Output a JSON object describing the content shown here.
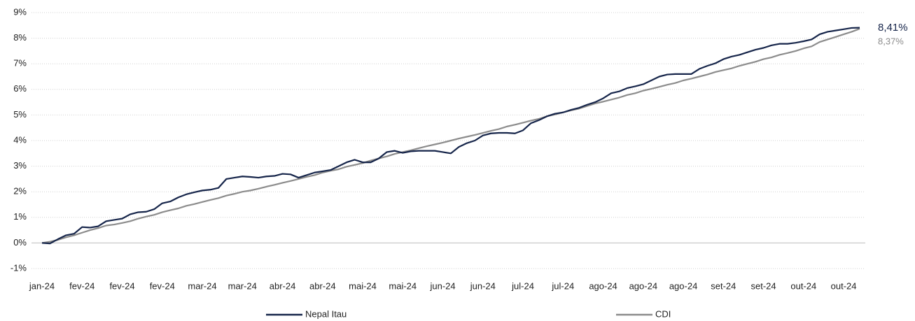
{
  "chart_data": {
    "type": "line",
    "categories": [
      "jan-24",
      null,
      null,
      null,
      null,
      "fev-24",
      null,
      null,
      null,
      null,
      "fev-24",
      null,
      null,
      null,
      null,
      "fev-24",
      null,
      null,
      null,
      null,
      "mar-24",
      null,
      null,
      null,
      null,
      "mar-24",
      null,
      null,
      null,
      null,
      "abr-24",
      null,
      null,
      null,
      null,
      "abr-24",
      null,
      null,
      null,
      null,
      "mai-24",
      null,
      null,
      null,
      null,
      "mai-24",
      null,
      null,
      null,
      null,
      "jun-24",
      null,
      null,
      null,
      null,
      "jun-24",
      null,
      null,
      null,
      null,
      "jul-24",
      null,
      null,
      null,
      null,
      "jul-24",
      null,
      null,
      null,
      null,
      "ago-24",
      null,
      null,
      null,
      null,
      "ago-24",
      null,
      null,
      null,
      null,
      "ago-24",
      null,
      null,
      null,
      null,
      "set-24",
      null,
      null,
      null,
      null,
      "set-24",
      null,
      null,
      null,
      null,
      "out-24",
      null,
      null,
      null,
      null,
      "out-24",
      null,
      null
    ],
    "series": [
      {
        "name": "Nepal Itau",
        "color": "#16254a",
        "values": [
          0.0,
          -0.02,
          0.15,
          0.3,
          0.36,
          0.62,
          0.6,
          0.65,
          0.85,
          0.9,
          0.95,
          1.12,
          1.2,
          1.22,
          1.32,
          1.55,
          1.62,
          1.78,
          1.9,
          1.98,
          2.05,
          2.08,
          2.15,
          2.5,
          2.55,
          2.6,
          2.58,
          2.55,
          2.6,
          2.62,
          2.7,
          2.68,
          2.55,
          2.65,
          2.75,
          2.8,
          2.85,
          3.0,
          3.15,
          3.25,
          3.15,
          3.15,
          3.3,
          3.55,
          3.6,
          3.52,
          3.58,
          3.6,
          3.6,
          3.6,
          3.55,
          3.5,
          3.75,
          3.9,
          4.0,
          4.2,
          4.28,
          4.3,
          4.3,
          4.28,
          4.4,
          4.68,
          4.8,
          4.95,
          5.05,
          5.1,
          5.2,
          5.28,
          5.4,
          5.5,
          5.65,
          5.85,
          5.92,
          6.05,
          6.12,
          6.2,
          6.35,
          6.5,
          6.58,
          6.6,
          6.6,
          6.6,
          6.8,
          6.92,
          7.02,
          7.18,
          7.28,
          7.35,
          7.45,
          7.55,
          7.62,
          7.72,
          7.78,
          7.78,
          7.82,
          7.88,
          7.95,
          8.15,
          8.25,
          8.3,
          8.35,
          8.4,
          8.41
        ],
        "value_labels": [
          null,
          null,
          null,
          null,
          null,
          null,
          null,
          null,
          null,
          null,
          null,
          null,
          null,
          null,
          null,
          null,
          null,
          null,
          null,
          null,
          null,
          null,
          null,
          null,
          null,
          null,
          null,
          null,
          null,
          null,
          null,
          null,
          null,
          null,
          null,
          null,
          null,
          null,
          null,
          null,
          null,
          null,
          null,
          null,
          null,
          null,
          null,
          null,
          null,
          null,
          null,
          null,
          null,
          null,
          null,
          null,
          null,
          null,
          null,
          null,
          null,
          null,
          null,
          null,
          null,
          null,
          null,
          null,
          null,
          null,
          null,
          null,
          null,
          null,
          null,
          null,
          null,
          null,
          null,
          null,
          null,
          null,
          null,
          null,
          null,
          null,
          null,
          null,
          null,
          null,
          null,
          null,
          null,
          null,
          null,
          null,
          null,
          null,
          null,
          null,
          null,
          null,
          "8,41%"
        ]
      },
      {
        "name": "CDI",
        "color": "#8c8c8c",
        "values": [
          0.0,
          0.05,
          0.12,
          0.22,
          0.3,
          0.4,
          0.5,
          0.58,
          0.68,
          0.72,
          0.78,
          0.85,
          0.95,
          1.03,
          1.1,
          1.2,
          1.28,
          1.35,
          1.45,
          1.52,
          1.6,
          1.68,
          1.75,
          1.85,
          1.92,
          2.0,
          2.05,
          2.12,
          2.2,
          2.27,
          2.35,
          2.42,
          2.5,
          2.58,
          2.65,
          2.75,
          2.82,
          2.88,
          2.98,
          3.05,
          3.12,
          3.22,
          3.3,
          3.38,
          3.48,
          3.55,
          3.62,
          3.7,
          3.78,
          3.85,
          3.92,
          4.0,
          4.08,
          4.15,
          4.22,
          4.3,
          4.38,
          4.45,
          4.55,
          4.62,
          4.7,
          4.78,
          4.85,
          4.95,
          5.02,
          5.1,
          5.18,
          5.25,
          5.35,
          5.45,
          5.52,
          5.6,
          5.68,
          5.78,
          5.85,
          5.95,
          6.02,
          6.1,
          6.18,
          6.25,
          6.35,
          6.42,
          6.5,
          6.58,
          6.68,
          6.75,
          6.82,
          6.92,
          7.0,
          7.08,
          7.18,
          7.25,
          7.35,
          7.42,
          7.5,
          7.6,
          7.68,
          7.85,
          7.95,
          8.05,
          8.15,
          8.25,
          8.37
        ],
        "value_labels": [
          null,
          null,
          null,
          null,
          null,
          null,
          null,
          null,
          null,
          null,
          null,
          null,
          null,
          null,
          null,
          null,
          null,
          null,
          null,
          null,
          null,
          null,
          null,
          null,
          null,
          null,
          null,
          null,
          null,
          null,
          null,
          null,
          null,
          null,
          null,
          null,
          null,
          null,
          null,
          null,
          null,
          null,
          null,
          null,
          null,
          null,
          null,
          null,
          null,
          null,
          null,
          null,
          null,
          null,
          null,
          null,
          null,
          null,
          null,
          null,
          null,
          null,
          null,
          null,
          null,
          null,
          null,
          null,
          null,
          null,
          null,
          null,
          null,
          null,
          null,
          null,
          null,
          null,
          null,
          null,
          null,
          null,
          null,
          null,
          null,
          null,
          null,
          null,
          null,
          null,
          null,
          null,
          null,
          null,
          null,
          null,
          null,
          null,
          null,
          null,
          null,
          null,
          "8,37%"
        ]
      }
    ],
    "ylim": [
      -1,
      9
    ],
    "yticks": [
      {
        "value": -1,
        "label": "-1%"
      },
      {
        "value": 0,
        "label": "0%"
      },
      {
        "value": 1,
        "label": "1%"
      },
      {
        "value": 2,
        "label": "2%"
      },
      {
        "value": 3,
        "label": "3%"
      },
      {
        "value": 4,
        "label": "4%"
      },
      {
        "value": 5,
        "label": "5%"
      },
      {
        "value": 6,
        "label": "6%"
      },
      {
        "value": 7,
        "label": "7%"
      },
      {
        "value": 8,
        "label": "8%"
      },
      {
        "value": 9,
        "label": "9%"
      }
    ],
    "grid": true,
    "legend": "bottom"
  }
}
